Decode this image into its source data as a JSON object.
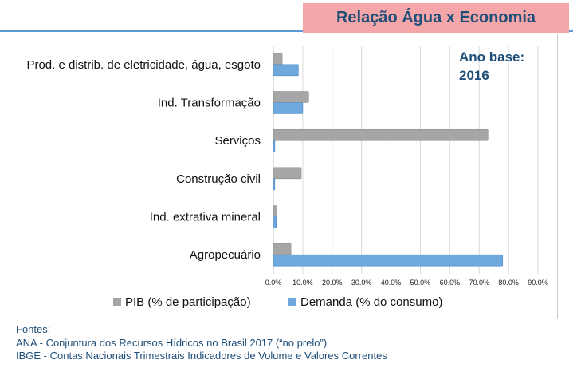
{
  "header": {
    "title": "Relação Água x Economia"
  },
  "annotation": {
    "line1": "Ano base:",
    "line2": "2016"
  },
  "chart_data": {
    "type": "bar",
    "orientation": "horizontal",
    "categories": [
      "Prod. e distrib. de eletricidade, água, esgoto",
      "Ind. Transformação",
      "Serviços",
      "Construção civil",
      "Ind. extrativa mineral",
      "Agropecuário"
    ],
    "series": [
      {
        "name": "PIB (% de participação)",
        "color": "#a6a6a6",
        "values": [
          3.0,
          12.0,
          73.0,
          9.5,
          1.2,
          6.0
        ]
      },
      {
        "name": "Demanda (% do consumo)",
        "color": "#6fa8dc",
        "values": [
          8.5,
          10.0,
          0.5,
          0.5,
          1.0,
          78.0
        ]
      }
    ],
    "xlim": [
      0,
      90
    ],
    "xticks": [
      "0.0%",
      "10.0%",
      "20.0%",
      "30.0%",
      "40.0%",
      "50.0%",
      "60.0%",
      "70.0%",
      "80.0%",
      "90.0%"
    ],
    "grid": true,
    "legend_position": "bottom"
  },
  "sources": {
    "heading": "Fontes:",
    "lines": [
      "ANA - Conjuntura dos Recursos Hídricos no Brasil 2017 (“no prelo”)",
      "IBGE -  Contas Nacionais Trimestrais Indicadores de Volume e Valores Correntes"
    ]
  }
}
